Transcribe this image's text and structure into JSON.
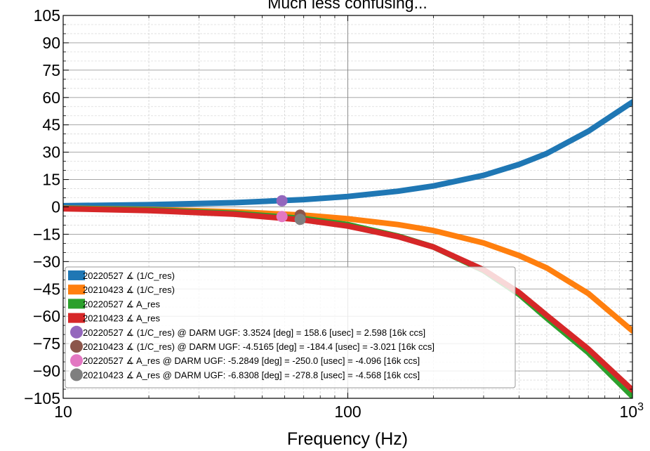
{
  "chart_data": {
    "type": "line",
    "title": "Much less confusing...",
    "xlabel": "Frequency (Hz)",
    "ylabel": "",
    "xscale": "log",
    "xlim": [
      10,
      1000
    ],
    "ylim": [
      -105,
      105
    ],
    "x_ticks": [
      {
        "value": 10,
        "label": "10"
      },
      {
        "value": 100,
        "label": "100"
      },
      {
        "value": 1000,
        "label": "10",
        "sup": "3"
      }
    ],
    "y_ticks": [
      {
        "value": 105,
        "label": "105"
      },
      {
        "value": 90,
        "label": "90"
      },
      {
        "value": 75,
        "label": "75"
      },
      {
        "value": 60,
        "label": "60"
      },
      {
        "value": 45,
        "label": "45"
      },
      {
        "value": 30,
        "label": "30"
      },
      {
        "value": 15,
        "label": "15"
      },
      {
        "value": 0,
        "label": "0"
      },
      {
        "value": -15,
        "label": "−15"
      },
      {
        "value": -30,
        "label": "−30"
      },
      {
        "value": -45,
        "label": "−45"
      },
      {
        "value": -60,
        "label": "−60"
      },
      {
        "value": -75,
        "label": "−75"
      },
      {
        "value": -90,
        "label": "−90"
      },
      {
        "value": -105,
        "label": "−105"
      }
    ],
    "grid": true,
    "legend_position": "lower-left",
    "series": [
      {
        "name": "20220527 ∡ (1/C_res)",
        "color": "#1f77b4",
        "kind": "line",
        "x": [
          10,
          20,
          40,
          70,
          100,
          150,
          200,
          300,
          400,
          500,
          700,
          1000
        ],
        "y": [
          0.6,
          1.2,
          2.3,
          4.0,
          5.7,
          8.6,
          11.5,
          17.3,
          23.3,
          29.3,
          41.5,
          57.5
        ]
      },
      {
        "name": "20210423 ∡ (1/C_res)",
        "color": "#ff7f0e",
        "kind": "line",
        "x": [
          10,
          20,
          40,
          70,
          100,
          150,
          200,
          300,
          400,
          500,
          700,
          1000
        ],
        "y": [
          -0.7,
          -1.4,
          -2.7,
          -4.5,
          -6.5,
          -9.7,
          -13.0,
          -19.8,
          -26.7,
          -33.5,
          -47.5,
          -68.0
        ]
      },
      {
        "name": "20220527 ∡ A_res",
        "color": "#2ca02c",
        "kind": "line",
        "x": [
          10,
          20,
          40,
          70,
          100,
          150,
          200,
          300,
          400,
          500,
          700,
          1000
        ],
        "y": [
          -0.8,
          -1.6,
          -3.5,
          -6.4,
          -9.7,
          -16.0,
          -22.0,
          -35.0,
          -48.0,
          -61.0,
          -80.0,
          -104.0
        ]
      },
      {
        "name": "20210423 ∡ A_res",
        "color": "#d62728",
        "kind": "line",
        "x": [
          10,
          20,
          40,
          70,
          100,
          150,
          200,
          300,
          400,
          500,
          700,
          1000
        ],
        "y": [
          -1.0,
          -2.0,
          -4.0,
          -7.2,
          -10.5,
          -16.3,
          -22.0,
          -34.5,
          -47.0,
          -59.5,
          -78.0,
          -100.5
        ]
      },
      {
        "name": "20220527 ∡ (1/C_res) @ DARM UGF: 3.3524 [deg] = 158.6 [usec] = 2.598 [16k ccs]",
        "color": "#9467bd",
        "kind": "point",
        "x": [
          58.7
        ],
        "y": [
          3.3524
        ]
      },
      {
        "name": "20210423 ∡ (1/C_res) @ DARM UGF: -4.5165 [deg] = -184.4 [usec] = -3.021 [16k ccs]",
        "color": "#8c564b",
        "kind": "point",
        "x": [
          68.0
        ],
        "y": [
          -4.5165
        ]
      },
      {
        "name": "20220527 ∡ A_res @ DARM UGF: -5.2849 [deg] = -250.0 [usec] = -4.096 [16k ccs]",
        "color": "#e377c2",
        "kind": "point",
        "x": [
          58.7
        ],
        "y": [
          -5.2849
        ]
      },
      {
        "name": "20210423 ∡ A_res @ DARM UGF: -6.8308 [deg] = -278.8 [usec] = -4.568 [16k ccs]",
        "color": "#7f7f7f",
        "kind": "point",
        "x": [
          68.0
        ],
        "y": [
          -6.8308
        ]
      }
    ]
  }
}
